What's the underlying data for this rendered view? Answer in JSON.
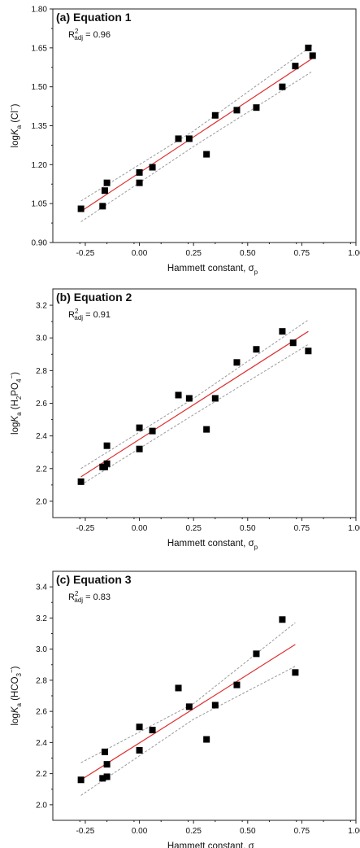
{
  "chart_data": [
    {
      "type": "scatter",
      "panel_label": "(a)",
      "title": "Equation 1",
      "annotation": {
        "base": "R",
        "sup": "2",
        "sub": "adj",
        "value": " = 0.96"
      },
      "xlabel": {
        "main": "Hammett constant, σ",
        "sub": "p"
      },
      "ylabel": {
        "pre": "log",
        "italic": "K",
        "sub": "a",
        "rest": " (Cl",
        "sup": "−",
        "close": ")"
      },
      "xlim": [
        -0.4,
        1.0
      ],
      "ylim": [
        0.9,
        1.8
      ],
      "x_ticks": [
        -0.25,
        0.0,
        0.25,
        0.5,
        0.75,
        1.0
      ],
      "x_tick_labels": [
        "-0.25",
        "0.00",
        "0.25",
        "0.50",
        "0.75",
        "1.00"
      ],
      "y_ticks": [
        0.9,
        1.05,
        1.2,
        1.35,
        1.5,
        1.65,
        1.8
      ],
      "y_tick_labels": [
        "0.90",
        "1.05",
        "1.20",
        "1.35",
        "1.50",
        "1.65",
        "1.80"
      ],
      "points": [
        [
          -0.27,
          1.03
        ],
        [
          -0.17,
          1.04
        ],
        [
          -0.16,
          1.1
        ],
        [
          -0.15,
          1.13
        ],
        [
          0.0,
          1.13
        ],
        [
          0.0,
          1.17
        ],
        [
          0.06,
          1.19
        ],
        [
          0.18,
          1.3
        ],
        [
          0.23,
          1.3
        ],
        [
          0.31,
          1.24
        ],
        [
          0.35,
          1.39
        ],
        [
          0.45,
          1.41
        ],
        [
          0.54,
          1.42
        ],
        [
          0.66,
          1.5
        ],
        [
          0.72,
          1.58
        ],
        [
          0.78,
          1.65
        ],
        [
          0.8,
          1.62
        ]
      ],
      "fit_line": [
        [
          -0.27,
          1.02
        ],
        [
          0.8,
          1.61
        ]
      ],
      "band_upper": [
        [
          -0.27,
          1.06
        ],
        [
          0.25,
          1.33
        ],
        [
          0.8,
          1.66
        ]
      ],
      "band_lower": [
        [
          -0.27,
          0.98
        ],
        [
          0.25,
          1.27
        ],
        [
          0.8,
          1.56
        ]
      ],
      "colors": {
        "points": "#000000",
        "fit": "#e03030",
        "band": "#9a9a9a"
      },
      "grid": false
    },
    {
      "type": "scatter",
      "panel_label": "(b)",
      "title": "Equation 2",
      "annotation": {
        "base": "R",
        "sup": "2",
        "sub": "adj",
        "value": " = 0.91"
      },
      "xlabel": {
        "main": "Hammett constant, σ",
        "sub": "p"
      },
      "ylabel": {
        "pre": "log",
        "italic": "K",
        "sub": "a",
        "rest": " (H",
        "sub2": "2",
        "rest2": "PO",
        "sub3": "4",
        "sup": "−",
        "close": ")"
      },
      "xlim": [
        -0.4,
        1.0
      ],
      "ylim": [
        1.9,
        3.3
      ],
      "x_ticks": [
        -0.25,
        0.0,
        0.25,
        0.5,
        0.75,
        1.0
      ],
      "x_tick_labels": [
        "-0.25",
        "0.00",
        "0.25",
        "0.50",
        "0.75",
        "1.00"
      ],
      "y_ticks": [
        2.0,
        2.2,
        2.4,
        2.6,
        2.8,
        3.0,
        3.2
      ],
      "y_tick_labels": [
        "2.0",
        "2.2",
        "2.4",
        "2.6",
        "2.8",
        "3.0",
        "3.2"
      ],
      "points": [
        [
          -0.27,
          2.12
        ],
        [
          -0.17,
          2.21
        ],
        [
          -0.16,
          2.21
        ],
        [
          -0.15,
          2.34
        ],
        [
          -0.15,
          2.23
        ],
        [
          0.0,
          2.45
        ],
        [
          0.0,
          2.32
        ],
        [
          0.06,
          2.43
        ],
        [
          0.18,
          2.65
        ],
        [
          0.23,
          2.63
        ],
        [
          0.31,
          2.44
        ],
        [
          0.35,
          2.63
        ],
        [
          0.45,
          2.85
        ],
        [
          0.54,
          2.93
        ],
        [
          0.66,
          3.04
        ],
        [
          0.71,
          2.97
        ],
        [
          0.78,
          2.92
        ]
      ],
      "fit_line": [
        [
          -0.27,
          2.15
        ],
        [
          0.78,
          3.04
        ]
      ],
      "band_upper": [
        [
          -0.27,
          2.2
        ],
        [
          0.25,
          2.63
        ],
        [
          0.78,
          3.11
        ]
      ],
      "band_lower": [
        [
          -0.27,
          2.1
        ],
        [
          0.25,
          2.53
        ],
        [
          0.78,
          2.96
        ]
      ],
      "colors": {
        "points": "#000000",
        "fit": "#e03030",
        "band": "#9a9a9a"
      },
      "grid": false
    },
    {
      "type": "scatter",
      "panel_label": "(c)",
      "title": "Equation 3",
      "annotation": {
        "base": "R",
        "sup": "2",
        "sub": "adj",
        "value": " = 0.83"
      },
      "xlabel": {
        "main": "Hammett constant, σ",
        "sub": "p"
      },
      "ylabel": {
        "pre": "log",
        "italic": "K",
        "sub": "a",
        "rest": " (HCO",
        "sub2": "3",
        "sup": "−",
        "close": ")"
      },
      "xlim": [
        -0.4,
        1.0
      ],
      "ylim": [
        1.9,
        3.5
      ],
      "x_ticks": [
        -0.25,
        0.0,
        0.25,
        0.5,
        0.75,
        1.0
      ],
      "x_tick_labels": [
        "-0.25",
        "0.00",
        "0.25",
        "0.50",
        "0.75",
        "1.00"
      ],
      "y_ticks": [
        2.0,
        2.2,
        2.4,
        2.6,
        2.8,
        3.0,
        3.2,
        3.4
      ],
      "y_tick_labels": [
        "2.0",
        "2.2",
        "2.4",
        "2.6",
        "2.8",
        "3.0",
        "3.2",
        "3.4"
      ],
      "points": [
        [
          -0.27,
          2.16
        ],
        [
          -0.17,
          2.17
        ],
        [
          -0.16,
          2.34
        ],
        [
          -0.15,
          2.26
        ],
        [
          -0.15,
          2.18
        ],
        [
          0.0,
          2.5
        ],
        [
          0.0,
          2.35
        ],
        [
          0.06,
          2.48
        ],
        [
          0.18,
          2.75
        ],
        [
          0.23,
          2.63
        ],
        [
          0.31,
          2.42
        ],
        [
          0.35,
          2.64
        ],
        [
          0.45,
          2.77
        ],
        [
          0.54,
          2.97
        ],
        [
          0.66,
          3.19
        ],
        [
          0.72,
          2.85
        ]
      ],
      "fit_line": [
        [
          -0.27,
          2.16
        ],
        [
          0.72,
          3.03
        ]
      ],
      "band_upper": [
        [
          -0.27,
          2.27
        ],
        [
          0.25,
          2.65
        ],
        [
          0.72,
          3.17
        ]
      ],
      "band_lower": [
        [
          -0.27,
          2.06
        ],
        [
          0.25,
          2.55
        ],
        [
          0.72,
          2.89
        ]
      ],
      "colors": {
        "points": "#000000",
        "fit": "#e03030",
        "band": "#9a9a9a"
      },
      "grid": false
    }
  ]
}
